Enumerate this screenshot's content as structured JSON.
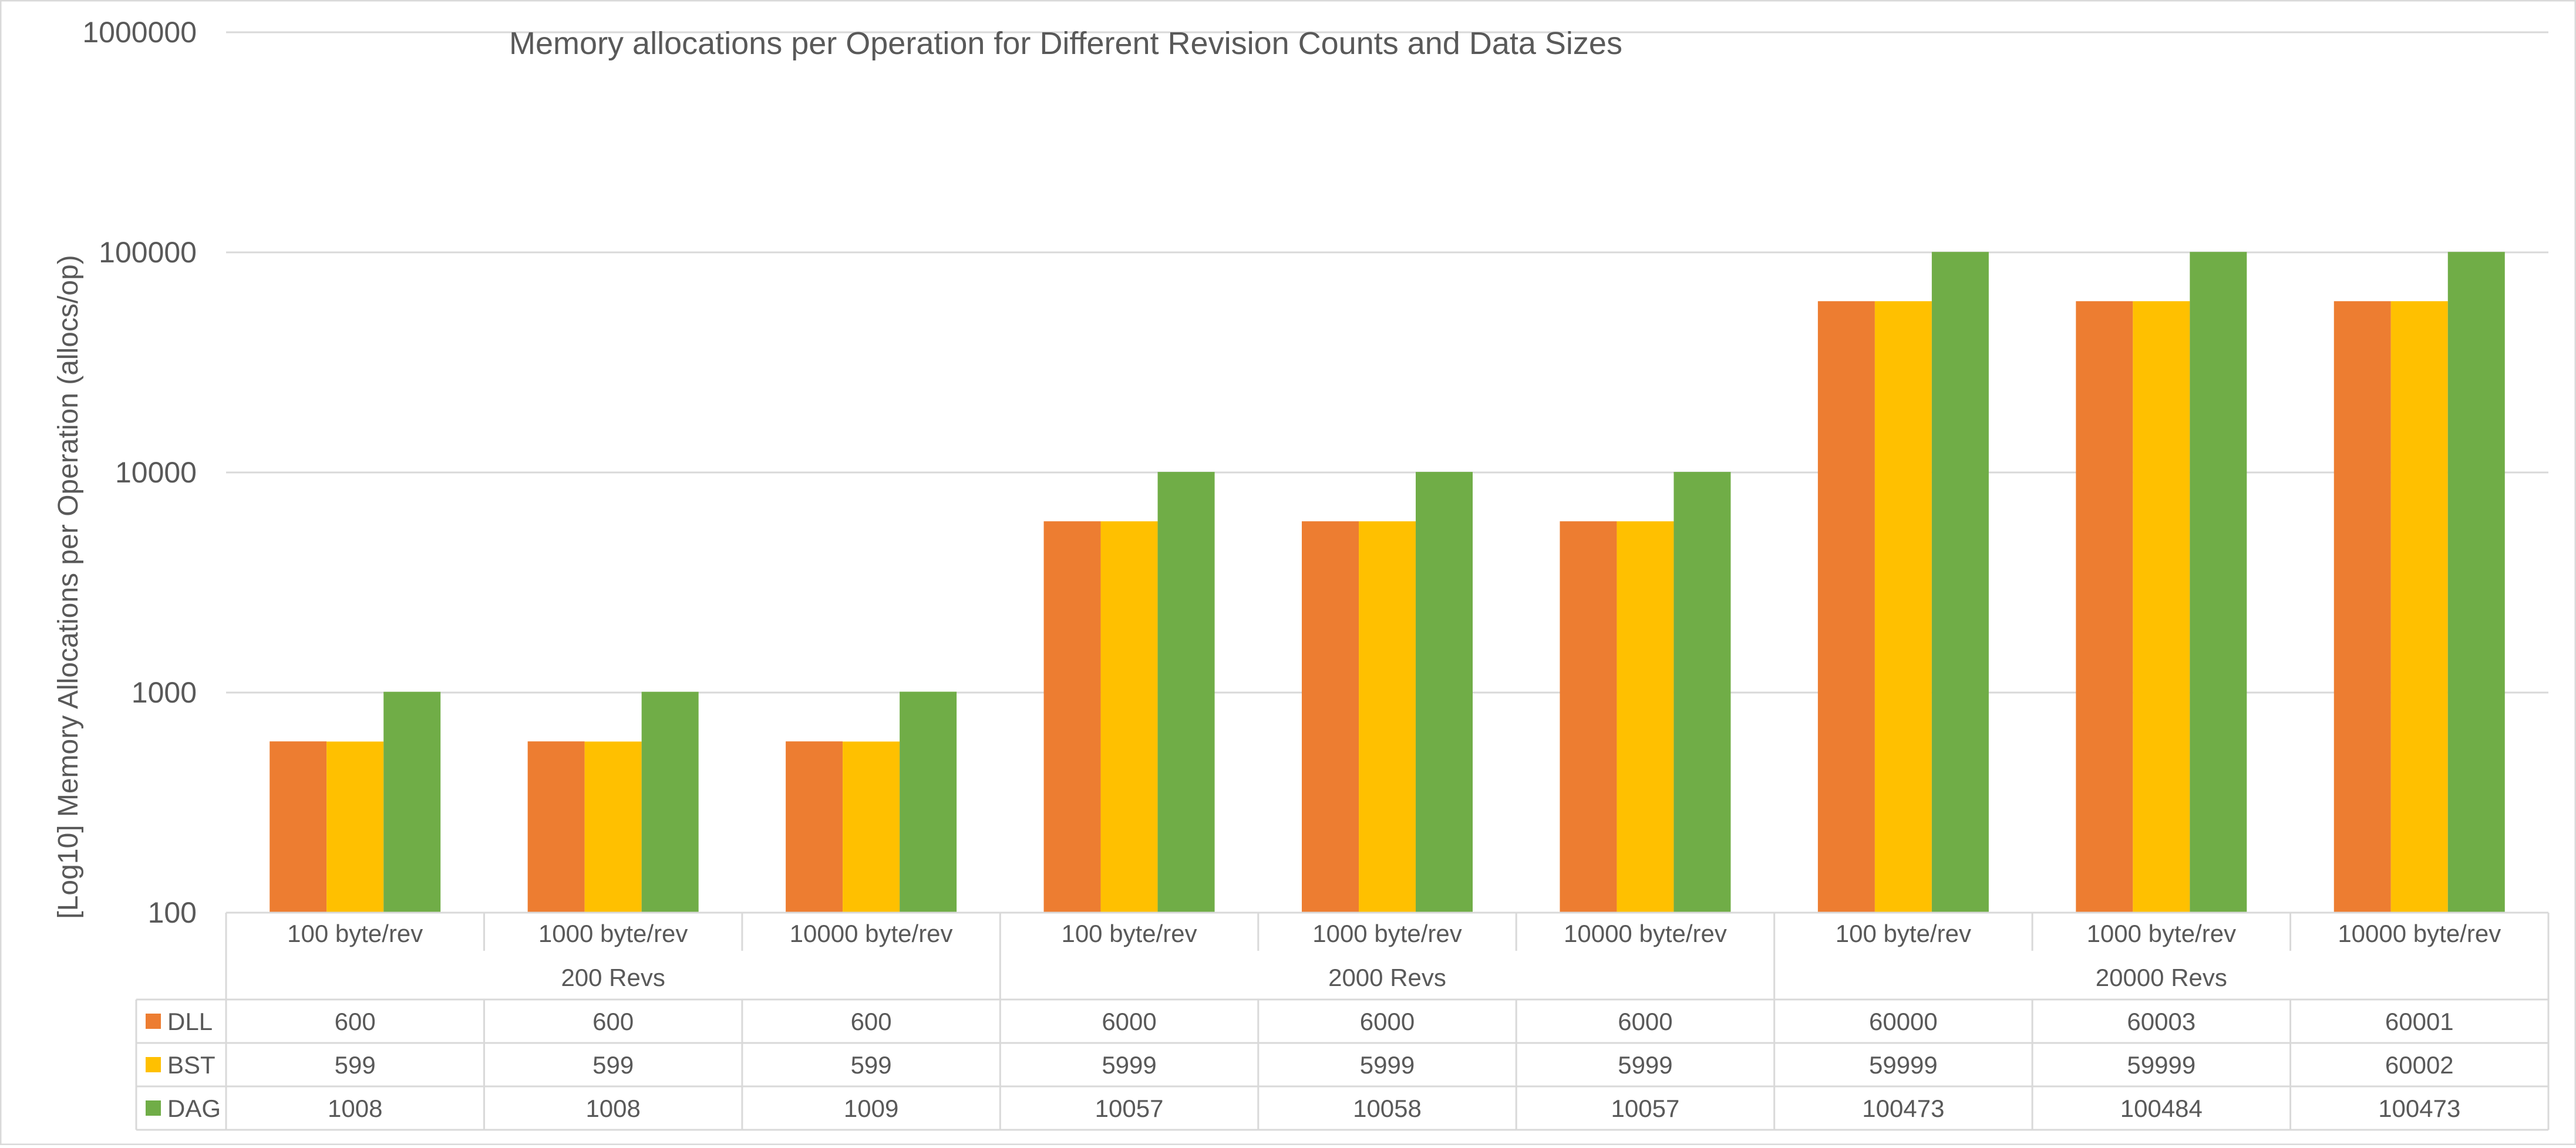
{
  "chart_data": {
    "type": "bar",
    "title": "Memory allocations per Operation for Different Revision Counts and Data Sizes",
    "ylabel": "[Log10] Memory Allocations per Operation (allocs/op)",
    "xlabel": "",
    "yscale": "log",
    "ylim": [
      100,
      1000000
    ],
    "y_ticks": [
      "100",
      "1000",
      "10000",
      "100000",
      "1000000"
    ],
    "grid": true,
    "legend": "data table",
    "categories": [
      "100 byte/rev",
      "1000 byte/rev",
      "10000 byte/rev",
      "100 byte/rev",
      "1000 byte/rev",
      "10000 byte/rev",
      "100 byte/rev",
      "1000 byte/rev",
      "10000 byte/rev"
    ],
    "groups": [
      {
        "label": "200 Revs",
        "count": 3
      },
      {
        "label": "2000 Revs",
        "count": 3
      },
      {
        "label": "20000 Revs",
        "count": 3
      }
    ],
    "series": [
      {
        "name": "DLL",
        "color": "#ED7D31",
        "values": [
          600,
          600,
          600,
          6000,
          6000,
          6000,
          60000,
          60003,
          60001
        ]
      },
      {
        "name": "BST",
        "color": "#FFC000",
        "values": [
          599,
          599,
          599,
          5999,
          5999,
          5999,
          59999,
          59999,
          60002
        ]
      },
      {
        "name": "DAG",
        "color": "#70AD47",
        "values": [
          1008,
          1008,
          1009,
          10057,
          10058,
          10057,
          100473,
          100484,
          100473
        ]
      }
    ]
  }
}
